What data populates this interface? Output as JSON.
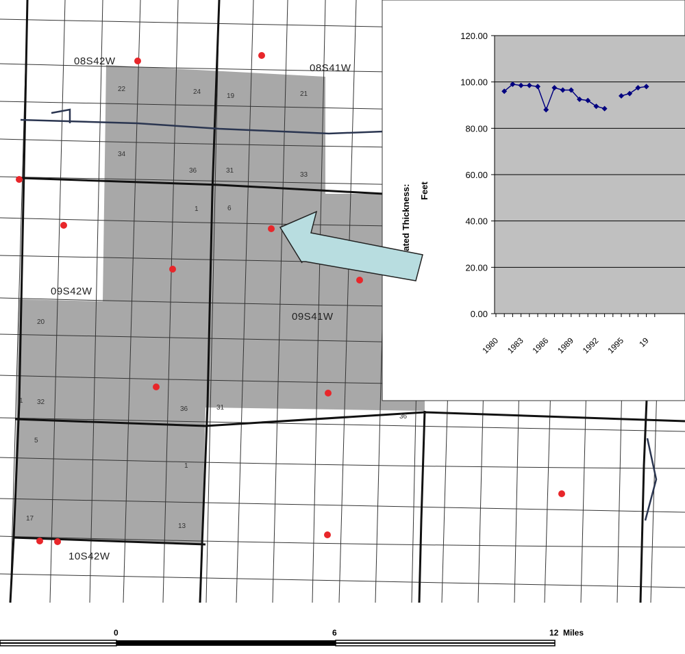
{
  "map": {
    "township_labels": [
      {
        "id": "08s42w",
        "text": "08S42W"
      },
      {
        "id": "08s41w",
        "text": "08S41W"
      },
      {
        "id": "09s42w",
        "text": "09S42W"
      },
      {
        "id": "09s41w",
        "text": "09S41W"
      },
      {
        "id": "10s42w",
        "text": "10S42W"
      }
    ],
    "section_labels": [
      "22",
      "24",
      "19",
      "21",
      "34",
      "36",
      "31",
      "33",
      "1",
      "6",
      "20",
      "32",
      "36",
      "31",
      "36",
      "5",
      "1",
      "17",
      "13",
      "1"
    ],
    "wells_count": 17,
    "colors": {
      "selected_area": "#a8a8a8",
      "well": "#e8262a",
      "grid": "#333333",
      "river": "#2a3550",
      "arrow_fill": "#b8dde0"
    }
  },
  "scale_bar": {
    "labels": [
      "0",
      "6",
      "12  Miles"
    ]
  },
  "chart_data": {
    "type": "line",
    "title": "",
    "xlabel": "",
    "ylabel_line1": "Saturated Thickness:",
    "ylabel_line2": "Feet",
    "ylim": [
      0,
      120
    ],
    "yticks": [
      "120.00",
      "100.00",
      "80.00",
      "60.00",
      "40.00",
      "20.00",
      "0.00"
    ],
    "xticks": [
      "1980",
      "1983",
      "1986",
      "1989",
      "1992",
      "1995",
      "19"
    ],
    "x": [
      1981,
      1982,
      1983,
      1984,
      1985,
      1986,
      1987,
      1988,
      1989,
      1990,
      1991,
      1992,
      1993,
      1995,
      1996,
      1997,
      1998
    ],
    "values": [
      96,
      99,
      98.5,
      98.5,
      98,
      88,
      97.5,
      96.5,
      96.5,
      92.5,
      92,
      89.5,
      88.5,
      94,
      95,
      97.5,
      98
    ],
    "series_color": "#000080",
    "plot_bg": "#c0c0c0",
    "grid": true
  }
}
